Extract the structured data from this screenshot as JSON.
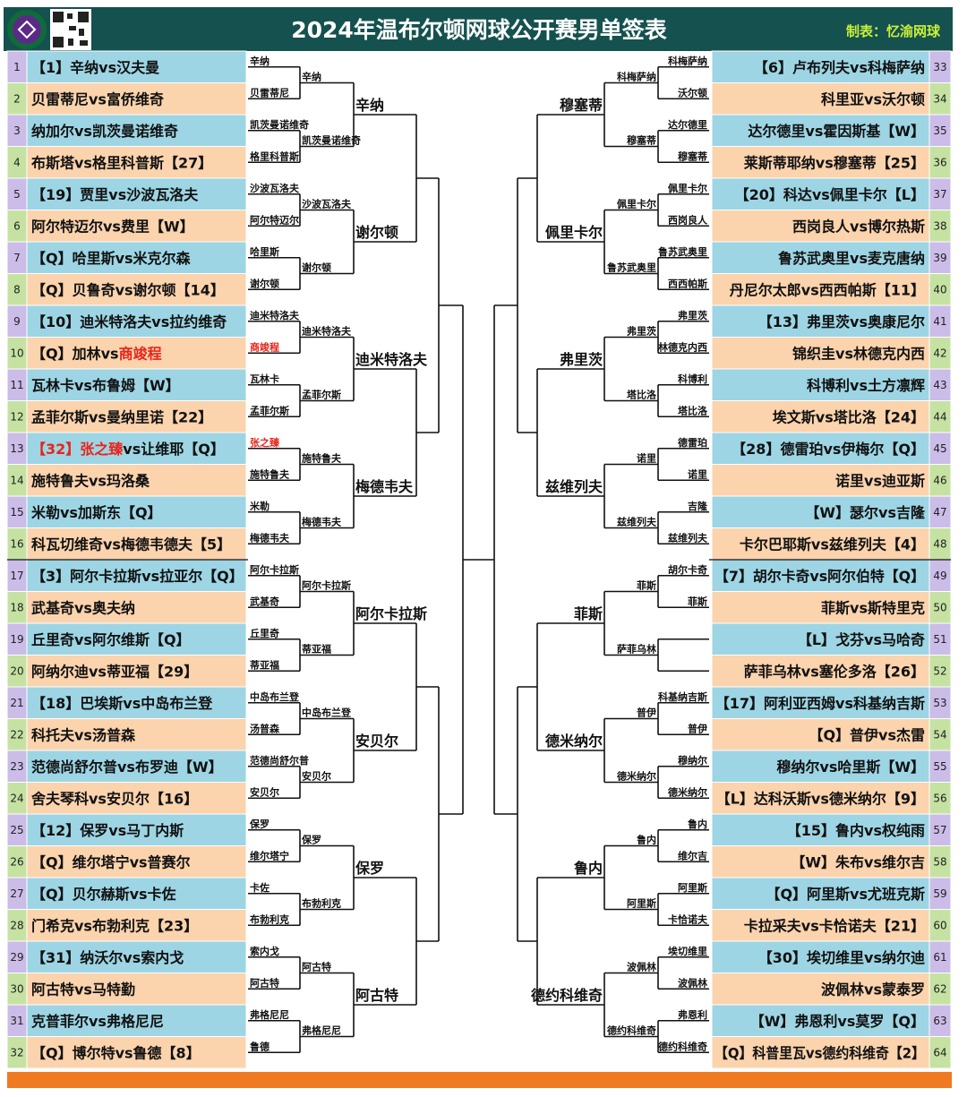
{
  "header": {
    "title": "2024年温布尔顿网球公开赛男单签表",
    "credit": "制表：忆渝网球"
  },
  "left": {
    "rows": [
      {
        "no": 1,
        "match": "【1】辛纳vs汉夫曼"
      },
      {
        "no": 2,
        "match": "贝雷蒂尼vs富侨维奇"
      },
      {
        "no": 3,
        "match": "纳加尔vs凯茨曼诺维奇"
      },
      {
        "no": 4,
        "match": "布斯塔vs格里科普斯【27】"
      },
      {
        "no": 5,
        "match": "【19】贾里vs沙波瓦洛夫"
      },
      {
        "no": 6,
        "match": "阿尔特迈尔vs费里【W】"
      },
      {
        "no": 7,
        "match": "【Q】哈里斯vs米克尔森"
      },
      {
        "no": 8,
        "match": "【Q】贝鲁奇vs谢尔顿【14】"
      },
      {
        "no": 9,
        "match": "【10】迪米特洛夫vs拉约维奇"
      },
      {
        "no": 10,
        "match": [
          {
            "text": "【Q】加林vs"
          },
          {
            "text": "商竣程",
            "color": "#e8241a"
          }
        ]
      },
      {
        "no": 11,
        "match": "瓦林卡vs布鲁姆【W】"
      },
      {
        "no": 12,
        "match": "孟菲尔斯vs曼纳里诺【22】"
      },
      {
        "no": 13,
        "match": [
          {
            "text": "【32】张之臻",
            "color": "#e8241a"
          },
          {
            "text": "vs让维耶【Q】"
          }
        ]
      },
      {
        "no": 14,
        "match": "施特鲁夫vs玛洛桑"
      },
      {
        "no": 15,
        "match": "米勒vs加斯东【Q】"
      },
      {
        "no": 16,
        "match": "科瓦切维奇vs梅德韦德夫【5】"
      },
      {
        "no": 17,
        "match": "【3】阿尔卡拉斯vs拉亚尔【Q】"
      },
      {
        "no": 18,
        "match": "武基奇vs奥夫纳"
      },
      {
        "no": 19,
        "match": "丘里奇vs阿尔维斯【Q】"
      },
      {
        "no": 20,
        "match": "阿纳尔迪vs蒂亚福【29】"
      },
      {
        "no": 21,
        "match": "【18】巴埃斯vs中岛布兰登"
      },
      {
        "no": 22,
        "match": "科托夫vs汤普森"
      },
      {
        "no": 23,
        "match": "范德尚舒尔普vs布罗迪【W】"
      },
      {
        "no": 24,
        "match": "舍夫琴科vs安贝尔【16】"
      },
      {
        "no": 25,
        "match": "【12】保罗vs马丁内斯"
      },
      {
        "no": 26,
        "match": "【Q】维尔塔宁vs普赛尔"
      },
      {
        "no": 27,
        "match": "【Q】贝尔赫斯vs卡佐"
      },
      {
        "no": 28,
        "match": "门希克vs布勃利克【23】"
      },
      {
        "no": 29,
        "match": "【31】纳沃尔vs索内戈"
      },
      {
        "no": 30,
        "match": "阿古特vs马特勤"
      },
      {
        "no": 31,
        "match": "克普菲尔vs弗格尼尼"
      },
      {
        "no": 32,
        "match": "【Q】博尔特vs鲁德【8】"
      }
    ],
    "round1": [
      "辛纳",
      "贝雷蒂尼",
      "凯茨曼诺维奇",
      "格里科普斯",
      "沙波瓦洛夫",
      "阿尔特迈尔",
      "哈里斯",
      "谢尔顿",
      "迪米特洛夫",
      {
        "text": "商竣程",
        "color": "#e8241a"
      },
      "瓦林卡",
      "孟菲尔斯",
      {
        "text": "张之臻",
        "color": "#e8241a"
      },
      "施特鲁夫",
      "米勒",
      "梅德韦夫",
      "阿尔卡拉斯",
      "武基奇",
      "丘里奇",
      "蒂亚福",
      "中岛布兰登",
      "汤普森",
      "范德尚舒尔普",
      "安贝尔",
      "保罗",
      "维尔塔宁",
      "卡佐",
      "布勃利克",
      "索内戈",
      "阿古特",
      "弗格尼尼",
      "鲁德"
    ],
    "round2": [
      "辛纳",
      "凯茨曼诺维奇",
      "沙波瓦洛夫",
      "谢尔顿",
      "迪米特洛夫",
      "孟菲尔斯",
      "施特鲁夫",
      "梅德韦夫",
      "阿尔卡拉斯",
      "蒂亚福",
      "中岛布兰登",
      "安贝尔",
      "保罗",
      "布勃利克",
      "阿古特",
      "弗格尼尼"
    ],
    "round3": [
      "辛纳",
      "谢尔顿",
      "迪米特洛夫",
      "梅德韦夫",
      "阿尔卡拉斯",
      "安贝尔",
      "保罗",
      "阿古特"
    ]
  },
  "right": {
    "rows": [
      {
        "no": 33,
        "match": "【6】卢布列夫vs科梅萨纳"
      },
      {
        "no": 34,
        "match": "科里亚vs沃尔顿"
      },
      {
        "no": 35,
        "match": "达尔德里vs霍因斯基【W】"
      },
      {
        "no": 36,
        "match": "莱斯蒂耶纳vs穆塞蒂【25】"
      },
      {
        "no": 37,
        "match": "【20】科达vs佩里卡尔【L】"
      },
      {
        "no": 38,
        "match": "西岗良人vs博尔热斯"
      },
      {
        "no": 39,
        "match": "鲁苏武奥里vs麦克唐纳"
      },
      {
        "no": 40,
        "match": "丹尼尔太郎vs西西帕斯【11】"
      },
      {
        "no": 41,
        "match": "【13】弗里茨vs奥康尼尔"
      },
      {
        "no": 42,
        "match": "锦织圭vs林德克内西"
      },
      {
        "no": 43,
        "match": "科博利vs土方凛辉"
      },
      {
        "no": 44,
        "match": "埃文斯vs塔比洛【24】"
      },
      {
        "no": 45,
        "match": "【28】德雷珀vs伊梅尔【Q】"
      },
      {
        "no": 46,
        "match": "诺里vs迪亚斯"
      },
      {
        "no": 47,
        "match": "【W】瑟尔vs吉隆"
      },
      {
        "no": 48,
        "match": "卡尔巴耶斯vs兹维列夫【4】"
      },
      {
        "no": 49,
        "match": "【7】胡尔卡奇vs阿尔伯特【Q】"
      },
      {
        "no": 50,
        "match": "菲斯vs斯特里克"
      },
      {
        "no": 51,
        "match": "【L】戈芬vs马哈奇"
      },
      {
        "no": 52,
        "match": "萨菲乌林vs塞伦多洛【26】"
      },
      {
        "no": 53,
        "match": "【17】阿利亚西姆vs科基纳吉斯"
      },
      {
        "no": 54,
        "match": "【Q】普伊vs杰雷"
      },
      {
        "no": 55,
        "match": "穆纳尔vs哈里斯【W】"
      },
      {
        "no": 56,
        "match": "【L】达科沃斯vs德米纳尔【9】"
      },
      {
        "no": 57,
        "match": "【15】鲁内vs权纯雨"
      },
      {
        "no": 58,
        "match": "【W】朱布vs维尔吉"
      },
      {
        "no": 59,
        "match": "【Q】阿里斯vs尤班克斯"
      },
      {
        "no": 60,
        "match": "卡拉采夫vs卡恰诺夫【21】"
      },
      {
        "no": 61,
        "match": "【30】埃切维里vs纳尔迪"
      },
      {
        "no": 62,
        "match": "波佩林vs蒙泰罗"
      },
      {
        "no": 63,
        "match": "【W】弗恩利vs莫罗【Q】"
      },
      {
        "no": 64,
        "match": "【Q】科普里瓦vs德约科维奇【2】"
      }
    ],
    "round1": [
      "科梅萨纳",
      "沃尔顿",
      "达尔德里",
      "穆塞蒂",
      "佩里卡尔",
      "西岗良人",
      "鲁苏武奥里",
      "西西帕斯",
      "弗里茨",
      "林德克内西",
      "科博利",
      "塔比洛",
      "德雷珀",
      "诺里",
      "吉隆",
      "兹维列夫",
      "胡尔卡奇",
      "菲斯",
      null,
      null,
      "科基纳吉斯",
      "普伊",
      "穆纳尔",
      "德米纳尔",
      "鲁内",
      "维尔吉",
      "阿里斯",
      "卡恰诺夫",
      "埃切维里",
      "波佩林",
      "弗恩利",
      "德约科维奇"
    ],
    "round2": [
      "科梅萨纳",
      "穆塞蒂",
      "佩里卡尔",
      "鲁苏武奥里",
      "弗里茨",
      "塔比洛",
      "诺里",
      "兹维列夫",
      "菲斯",
      "萨菲乌林",
      "普伊",
      "德米纳尔",
      "鲁内",
      "阿里斯",
      "波佩林",
      "德约科维奇"
    ],
    "round3": [
      "穆塞蒂",
      "佩里卡尔",
      "弗里茨",
      "兹维列夫",
      "菲斯",
      "德米纳尔",
      "鲁内",
      "德约科维奇"
    ]
  }
}
